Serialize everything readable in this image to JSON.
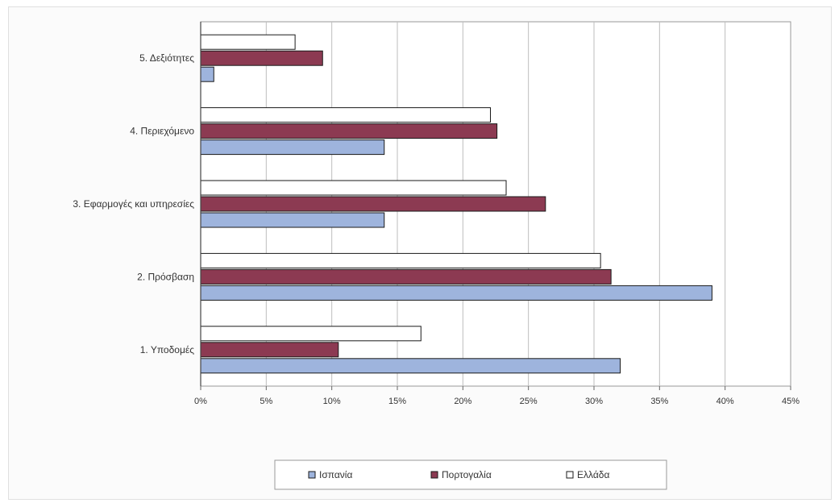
{
  "chart_data": {
    "type": "bar",
    "orientation": "horizontal",
    "title": "",
    "xlabel": "",
    "ylabel": "",
    "categories": [
      "1. Υποδομές",
      "2. Πρόσβαση",
      "3. Εφαρμογές και υπηρεσίες",
      "4. Περιεχόμενο",
      "5. Δεξιότητες"
    ],
    "series": [
      {
        "name": "Ισπανία",
        "color": "#9eb4dd",
        "values": [
          32,
          39,
          14,
          14,
          1
        ]
      },
      {
        "name": "Πορτογαλία",
        "color": "#8c3a52",
        "values": [
          10.5,
          31.3,
          26.3,
          22.6,
          9.3
        ]
      },
      {
        "name": "Ελλάδα",
        "color": "#ffffff",
        "values": [
          16.8,
          30.5,
          23.3,
          22.1,
          7.2
        ]
      }
    ],
    "xlim": [
      0,
      45
    ],
    "xticks": [
      0,
      5,
      10,
      15,
      20,
      25,
      30,
      35,
      40,
      45
    ],
    "tick_labels": [
      "0%",
      "5%",
      "10%",
      "15%",
      "20%",
      "25%",
      "30%",
      "35%",
      "40%",
      "45%"
    ],
    "grid": true,
    "legend": {
      "placement": "bottom-center",
      "items": [
        "Ισπανία",
        "Πορτογαλία",
        "Ελλάδα"
      ]
    }
  }
}
